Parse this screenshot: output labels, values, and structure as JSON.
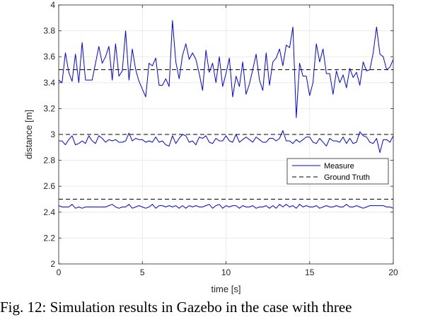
{
  "chart_data": {
    "type": "line",
    "xlabel": "time [s]",
    "ylabel": "distance [m]",
    "xlim": [
      0,
      20
    ],
    "ylim": [
      2,
      4
    ],
    "xticks": [
      0,
      5,
      10,
      15,
      20
    ],
    "yticks": [
      2,
      2.2,
      2.4,
      2.6,
      2.8,
      3,
      3.2,
      3.4,
      3.6,
      3.8,
      4
    ],
    "grid": true,
    "legend_position": "center-right",
    "legend": [
      "Measure",
      "Ground Truth"
    ],
    "colors": {
      "measure": "#0000ff",
      "ground_truth": "#000000",
      "grid": "#e6e6e6",
      "axis": "#262626"
    },
    "x": [
      0,
      0.2,
      0.4,
      0.6,
      0.8,
      1,
      1.2,
      1.4,
      1.6,
      1.8,
      2,
      2.2,
      2.4,
      2.6,
      2.8,
      3,
      3.2,
      3.4,
      3.6,
      3.8,
      4,
      4.2,
      4.4,
      4.6,
      4.8,
      5,
      5.2,
      5.4,
      5.6,
      5.8,
      6,
      6.2,
      6.4,
      6.6,
      6.8,
      7,
      7.2,
      7.4,
      7.6,
      7.8,
      8,
      8.2,
      8.4,
      8.6,
      8.8,
      9,
      9.2,
      9.4,
      9.6,
      9.8,
      10,
      10.2,
      10.4,
      10.6,
      10.8,
      11,
      11.2,
      11.4,
      11.6,
      11.8,
      12,
      12.2,
      12.4,
      12.6,
      12.8,
      13,
      13.2,
      13.4,
      13.6,
      13.8,
      14,
      14.2,
      14.4,
      14.6,
      14.8,
      15,
      15.2,
      15.4,
      15.6,
      15.8,
      16,
      16.2,
      16.4,
      16.6,
      16.8,
      17,
      17.2,
      17.4,
      17.6,
      17.8,
      18,
      18.2,
      18.4,
      18.6,
      18.8,
      19,
      19.2,
      19.4,
      19.6,
      19.8,
      20
    ],
    "series": [
      {
        "name": "Measure",
        "values": [
          3.42,
          3.4,
          3.63,
          3.48,
          3.41,
          3.62,
          3.4,
          3.71,
          3.42,
          3.42,
          3.42,
          3.55,
          3.68,
          3.55,
          3.6,
          3.68,
          3.42,
          3.7,
          3.45,
          3.49,
          3.8,
          3.42,
          3.66,
          3.5,
          3.41,
          3.35,
          3.29,
          3.55,
          3.53,
          3.59,
          3.38,
          3.38,
          3.43,
          3.37,
          3.88,
          3.56,
          3.43,
          3.61,
          3.7,
          3.58,
          3.63,
          3.58,
          3.47,
          3.34,
          3.65,
          3.48,
          3.55,
          3.4,
          3.6,
          3.37,
          3.47,
          3.59,
          3.29,
          3.45,
          3.37,
          3.56,
          3.31,
          3.39,
          3.5,
          3.62,
          3.42,
          3.34,
          3.63,
          3.38,
          3.56,
          3.59,
          3.66,
          3.53,
          3.69,
          3.67,
          3.83,
          3.13,
          3.55,
          3.45,
          3.45,
          3.3,
          3.4,
          3.7,
          3.56,
          3.66,
          3.47,
          3.47,
          3.31,
          3.49,
          3.4,
          3.46,
          3.36,
          3.51,
          3.44,
          3.48,
          3.38,
          3.56,
          3.49,
          3.5,
          3.63,
          3.83,
          3.62,
          3.6,
          3.5,
          3.52,
          3.58
        ]
      },
      {
        "name": "",
        "values": [
          2.95,
          2.95,
          2.92,
          2.96,
          2.99,
          2.92,
          2.93,
          2.95,
          2.93,
          2.99,
          2.95,
          2.93,
          2.99,
          2.97,
          2.94,
          2.96,
          2.95,
          2.96,
          2.94,
          2.94,
          2.95,
          3.01,
          2.95,
          2.97,
          2.96,
          2.96,
          2.94,
          2.95,
          2.94,
          2.98,
          2.94,
          2.95,
          2.92,
          2.91,
          2.99,
          2.93,
          2.97,
          3.0,
          2.99,
          2.94,
          2.95,
          2.92,
          2.98,
          2.97,
          2.99,
          2.94,
          2.93,
          2.97,
          2.95,
          2.95,
          2.99,
          2.95,
          2.94,
          3.0,
          2.94,
          2.96,
          2.98,
          2.96,
          2.94,
          2.98,
          2.96,
          2.94,
          2.94,
          2.97,
          2.97,
          2.95,
          2.97,
          3.03,
          2.95,
          2.95,
          2.93,
          2.96,
          2.94,
          2.96,
          2.98,
          2.98,
          2.94,
          2.93,
          2.97,
          2.94,
          2.91,
          2.97,
          2.95,
          2.95,
          2.94,
          2.98,
          2.93,
          2.97,
          2.93,
          2.94,
          3.02,
          2.99,
          2.98,
          2.94,
          2.93,
          2.97,
          2.86,
          2.96,
          2.96,
          2.94,
          2.99
        ]
      },
      {
        "name": "",
        "values": [
          2.45,
          2.44,
          2.44,
          2.44,
          2.46,
          2.43,
          2.44,
          2.43,
          2.44,
          2.44,
          2.44,
          2.44,
          2.44,
          2.44,
          2.44,
          2.45,
          2.46,
          2.44,
          2.43,
          2.44,
          2.44,
          2.46,
          2.43,
          2.44,
          2.45,
          2.44,
          2.43,
          2.44,
          2.46,
          2.43,
          2.45,
          2.45,
          2.44,
          2.45,
          2.44,
          2.45,
          2.43,
          2.45,
          2.43,
          2.45,
          2.44,
          2.45,
          2.44,
          2.44,
          2.45,
          2.46,
          2.43,
          2.45,
          2.46,
          2.43,
          2.45,
          2.44,
          2.45,
          2.45,
          2.43,
          2.45,
          2.44,
          2.44,
          2.45,
          2.43,
          2.44,
          2.44,
          2.45,
          2.43,
          2.45,
          2.43,
          2.46,
          2.44,
          2.46,
          2.44,
          2.45,
          2.43,
          2.46,
          2.44,
          2.45,
          2.44,
          2.44,
          2.45,
          2.43,
          2.44,
          2.45,
          2.44,
          2.44,
          2.45,
          2.44,
          2.44,
          2.46,
          2.44,
          2.44,
          2.45,
          2.44,
          2.43,
          2.44,
          2.45,
          2.45,
          2.45,
          2.45,
          2.45,
          2.44,
          2.44,
          2.43
        ]
      }
    ],
    "ground_truth": [
      2.5,
      3.0,
      3.5
    ]
  },
  "caption": "Fig. 12: Simulation results in Gazebo in the case with three"
}
